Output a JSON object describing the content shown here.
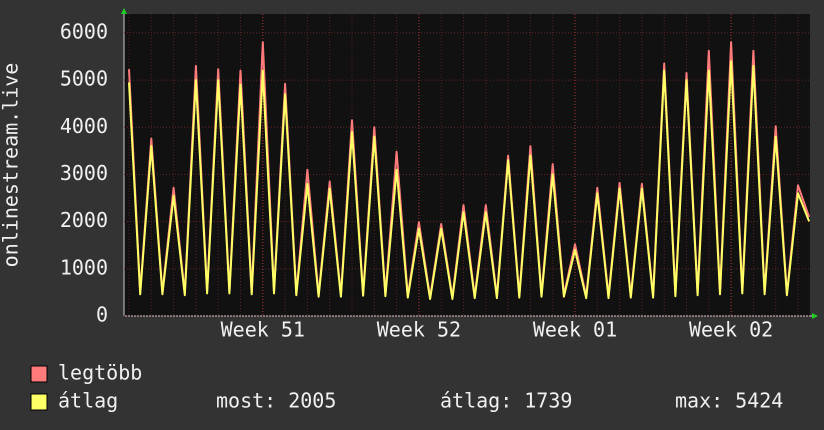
{
  "chart_data": {
    "type": "line",
    "y_label": "onlinestream.live",
    "categories": [
      null,
      null,
      null,
      null,
      null,
      null,
      null,
      null,
      null,
      null,
      null,
      null,
      "Week 51",
      null,
      null,
      null,
      null,
      null,
      null,
      null,
      null,
      null,
      null,
      null,
      null,
      null,
      "Week 52",
      null,
      null,
      null,
      null,
      null,
      null,
      null,
      null,
      null,
      null,
      null,
      null,
      null,
      "Week 01",
      null,
      null,
      null,
      null,
      null,
      null,
      null,
      null,
      null,
      null,
      null,
      null,
      null,
      "Week 02",
      null,
      null,
      null,
      null,
      null,
      null,
      null
    ],
    "series": [
      {
        "name": "legtöbb",
        "color": "#ff7b7b",
        "values": [
          5230,
          500,
          3760,
          500,
          2720,
          480,
          5300,
          520,
          5230,
          520,
          5200,
          500,
          5800,
          520,
          4920,
          480,
          3100,
          450,
          2850,
          450,
          4150,
          470,
          4000,
          460,
          3480,
          430,
          1990,
          400,
          1950,
          400,
          2350,
          420,
          2350,
          420,
          3400,
          430,
          3600,
          450,
          3220,
          450,
          1520,
          420,
          2720,
          420,
          2820,
          430,
          2800,
          430,
          5350,
          460,
          5150,
          480,
          5620,
          500,
          5800,
          520,
          5620,
          500,
          4020,
          480,
          2770,
          2100
        ]
      },
      {
        "name": "átlag",
        "color": "#ffff66",
        "values": [
          4950,
          460,
          3600,
          460,
          2550,
          440,
          5000,
          480,
          5000,
          480,
          4900,
          460,
          5200,
          480,
          4700,
          440,
          2800,
          410,
          2700,
          410,
          3900,
          430,
          3800,
          420,
          3100,
          390,
          1850,
          360,
          1850,
          360,
          2200,
          380,
          2200,
          380,
          3300,
          390,
          3400,
          410,
          3000,
          410,
          1400,
          380,
          2600,
          380,
          2700,
          390,
          2700,
          390,
          5200,
          420,
          5000,
          440,
          5200,
          460,
          5400,
          480,
          5300,
          460,
          3800,
          440,
          2600,
          2005
        ]
      }
    ],
    "ylim": [
      0,
      6400
    ],
    "yticks": [
      0,
      1000,
      2000,
      3000,
      4000,
      5000,
      6000
    ],
    "grid": true,
    "stats": [
      {
        "label": "most:",
        "value": 2005
      },
      {
        "label": "átlag:",
        "value": 1739
      },
      {
        "label": "max:",
        "value": 5424
      }
    ]
  }
}
